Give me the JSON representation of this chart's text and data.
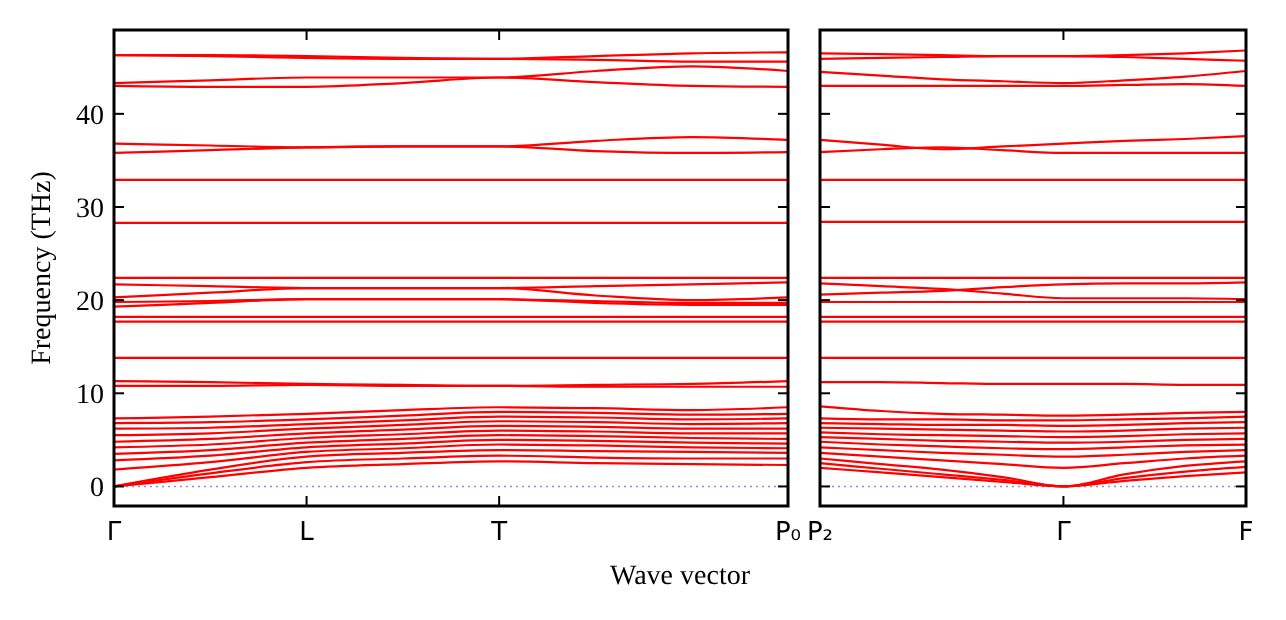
{
  "chart_data": [
    {
      "type": "line",
      "ylabel": "Frequency (THz)",
      "xlabel": "Wave vector",
      "categories": [
        "Γ",
        null,
        "L",
        null,
        "T",
        null,
        null,
        "P₀"
      ],
      "ylim": [
        -2.1,
        49
      ],
      "yticks": [
        0,
        10,
        20,
        30,
        40
      ],
      "ref_lines": [
        {
          "axis": "y",
          "value": 0,
          "color": "#8888ff",
          "line_style": "dotted"
        }
      ],
      "series": [
        {
          "color": "#ff0000",
          "values": [
            46.3,
            46.3,
            46.2,
            46.0,
            45.9,
            46.2,
            46.5,
            46.6
          ]
        },
        {
          "color": "#ff0000",
          "values": [
            46.3,
            46.2,
            46.0,
            45.9,
            45.9,
            45.8,
            45.6,
            45.6
          ]
        },
        {
          "color": "#ff0000",
          "values": [
            43.3,
            43.6,
            43.9,
            43.9,
            43.9,
            44.6,
            45.1,
            44.6
          ]
        },
        {
          "color": "#ff0000",
          "values": [
            43.0,
            42.9,
            42.9,
            43.3,
            43.9,
            43.4,
            43.0,
            42.9
          ]
        },
        {
          "color": "#ff0000",
          "values": [
            36.8,
            36.6,
            36.4,
            36.5,
            36.5,
            37.1,
            37.5,
            37.2
          ]
        },
        {
          "color": "#ff0000",
          "values": [
            35.8,
            36.1,
            36.4,
            36.5,
            36.5,
            36.0,
            35.8,
            35.9
          ]
        },
        {
          "color": "#ff0000",
          "values": [
            32.9,
            32.9,
            32.9,
            32.9,
            32.9,
            32.9,
            32.9,
            32.9
          ]
        },
        {
          "color": "#ff0000",
          "values": [
            28.3,
            28.3,
            28.3,
            28.3,
            28.3,
            28.3,
            28.3,
            28.3
          ]
        },
        {
          "color": "#ff0000",
          "values": [
            22.4,
            22.4,
            22.4,
            22.4,
            22.4,
            22.4,
            22.4,
            22.4
          ]
        },
        {
          "color": "#ff0000",
          "values": [
            21.7,
            21.5,
            21.3,
            21.3,
            21.3,
            21.5,
            21.7,
            21.9
          ]
        },
        {
          "color": "#ff0000",
          "values": [
            20.3,
            20.8,
            21.3,
            21.3,
            21.3,
            20.5,
            20.0,
            20.3
          ]
        },
        {
          "color": "#ff0000",
          "values": [
            19.8,
            19.9,
            20.1,
            20.1,
            20.1,
            19.9,
            19.7,
            19.7
          ]
        },
        {
          "color": "#ff0000",
          "values": [
            19.3,
            19.7,
            20.1,
            20.1,
            20.1,
            19.7,
            19.5,
            19.5
          ]
        },
        {
          "color": "#ff0000",
          "values": [
            18.2,
            18.2,
            18.2,
            18.2,
            18.2,
            18.2,
            18.2,
            18.2
          ]
        },
        {
          "color": "#ff0000",
          "values": [
            17.7,
            17.7,
            17.7,
            17.7,
            17.7,
            17.7,
            17.7,
            17.7
          ]
        },
        {
          "color": "#ff0000",
          "values": [
            13.8,
            13.8,
            13.8,
            13.8,
            13.8,
            13.8,
            13.8,
            13.8
          ]
        },
        {
          "color": "#ff0000",
          "values": [
            11.3,
            11.2,
            11.0,
            10.9,
            10.8,
            10.9,
            11.0,
            11.3
          ]
        },
        {
          "color": "#ff0000",
          "values": [
            10.8,
            10.8,
            10.9,
            10.8,
            10.8,
            10.7,
            10.7,
            10.7
          ]
        },
        {
          "color": "#ff0000",
          "values": [
            0,
            1.0,
            2.0,
            2.4,
            2.7,
            2.5,
            2.4,
            2.3
          ]
        },
        {
          "color": "#ff0000",
          "values": [
            0,
            1.4,
            2.6,
            3.0,
            3.3,
            3.1,
            3.0,
            3.0
          ]
        },
        {
          "color": "#ff0000",
          "values": [
            0,
            1.8,
            3.2,
            3.6,
            3.9,
            3.8,
            3.7,
            3.6
          ]
        },
        {
          "color": "#ff0000",
          "values": [
            1.8,
            2.6,
            3.7,
            4.1,
            4.5,
            4.4,
            4.2,
            4.1
          ]
        },
        {
          "color": "#ff0000",
          "values": [
            2.8,
            3.3,
            4.2,
            4.6,
            5.0,
            4.9,
            4.7,
            4.6
          ]
        },
        {
          "color": "#ff0000",
          "values": [
            3.5,
            3.9,
            4.7,
            5.1,
            5.5,
            5.4,
            5.2,
            5.1
          ]
        },
        {
          "color": "#ff0000",
          "values": [
            4.2,
            4.5,
            5.2,
            5.6,
            6.0,
            5.9,
            5.7,
            5.7
          ]
        },
        {
          "color": "#ff0000",
          "values": [
            4.8,
            5.1,
            5.7,
            6.1,
            6.5,
            6.4,
            6.2,
            6.2
          ]
        },
        {
          "color": "#ff0000",
          "values": [
            5.5,
            5.7,
            6.2,
            6.6,
            7.0,
            6.9,
            6.7,
            6.8
          ]
        },
        {
          "color": "#ff0000",
          "values": [
            6.2,
            6.3,
            6.7,
            7.1,
            7.5,
            7.4,
            7.2,
            7.3
          ]
        },
        {
          "color": "#ff0000",
          "values": [
            6.8,
            6.9,
            7.2,
            7.6,
            8.0,
            7.9,
            7.7,
            7.8
          ]
        },
        {
          "color": "#ff0000",
          "values": [
            7.3,
            7.5,
            7.8,
            8.2,
            8.5,
            8.4,
            8.2,
            8.5
          ]
        }
      ]
    },
    {
      "type": "line",
      "tick_labels": "x",
      "categories": [
        "P₂",
        null,
        null,
        null,
        "Γ",
        null,
        null,
        "F"
      ],
      "ylim": [
        -2.1,
        49
      ],
      "yticks": [
        0,
        10,
        20,
        30,
        40
      ],
      "ref_lines": [
        {
          "axis": "y",
          "value": 0,
          "color": "#8888ff",
          "line_style": "dotted"
        }
      ],
      "series": [
        {
          "color": "#ff0000",
          "values": [
            46.5,
            46.4,
            46.3,
            46.2,
            46.2,
            46.3,
            46.5,
            46.8
          ]
        },
        {
          "color": "#ff0000",
          "values": [
            45.9,
            46.0,
            46.1,
            46.2,
            46.2,
            46.1,
            45.9,
            45.7
          ]
        },
        {
          "color": "#ff0000",
          "values": [
            44.5,
            44.1,
            43.7,
            43.5,
            43.3,
            43.6,
            44.0,
            44.6
          ]
        },
        {
          "color": "#ff0000",
          "values": [
            43.0,
            43.0,
            43.0,
            43.0,
            43.0,
            43.1,
            43.2,
            43.0
          ]
        },
        {
          "color": "#ff0000",
          "values": [
            37.2,
            36.7,
            36.2,
            36.5,
            36.8,
            37.1,
            37.3,
            37.6
          ]
        },
        {
          "color": "#ff0000",
          "values": [
            35.9,
            36.2,
            36.4,
            36.1,
            35.8,
            35.8,
            35.8,
            35.8
          ]
        },
        {
          "color": "#ff0000",
          "values": [
            32.9,
            32.9,
            32.9,
            32.9,
            32.9,
            32.9,
            32.9,
            32.9
          ]
        },
        {
          "color": "#ff0000",
          "values": [
            28.4,
            28.4,
            28.4,
            28.4,
            28.4,
            28.4,
            28.4,
            28.4
          ]
        },
        {
          "color": "#ff0000",
          "values": [
            22.4,
            22.4,
            22.4,
            22.4,
            22.4,
            22.4,
            22.4,
            22.4
          ]
        },
        {
          "color": "#ff0000",
          "values": [
            21.8,
            21.5,
            21.2,
            20.7,
            20.2,
            20.2,
            20.2,
            20.1
          ]
        },
        {
          "color": "#ff0000",
          "values": [
            20.6,
            20.8,
            21.0,
            21.4,
            21.7,
            21.8,
            21.8,
            21.9
          ]
        },
        {
          "color": "#ff0000",
          "values": [
            19.8,
            19.8,
            19.8,
            19.8,
            19.8,
            19.8,
            19.8,
            19.8
          ]
        },
        {
          "color": "#ff0000",
          "values": [
            18.2,
            18.2,
            18.2,
            18.2,
            18.2,
            18.2,
            18.2,
            18.2
          ]
        },
        {
          "color": "#ff0000",
          "values": [
            17.7,
            17.7,
            17.7,
            17.7,
            17.7,
            17.7,
            17.7,
            17.7
          ]
        },
        {
          "color": "#ff0000",
          "values": [
            13.8,
            13.8,
            13.8,
            13.8,
            13.8,
            13.8,
            13.8,
            13.8
          ]
        },
        {
          "color": "#ff0000",
          "values": [
            11.2,
            11.2,
            11.1,
            11.0,
            11.0,
            11.0,
            10.9,
            10.9
          ]
        },
        {
          "color": "#ff0000",
          "values": [
            2.0,
            1.5,
            1.0,
            0.5,
            0,
            0.6,
            1.1,
            1.5
          ]
        },
        {
          "color": "#ff0000",
          "values": [
            2.5,
            1.9,
            1.3,
            0.7,
            0,
            0.9,
            1.6,
            2.1
          ]
        },
        {
          "color": "#ff0000",
          "values": [
            3.0,
            2.4,
            1.8,
            1.0,
            0,
            1.3,
            2.2,
            2.7
          ]
        },
        {
          "color": "#ff0000",
          "values": [
            3.6,
            3.2,
            2.8,
            2.4,
            2.0,
            2.5,
            3.0,
            3.3
          ]
        },
        {
          "color": "#ff0000",
          "values": [
            4.2,
            3.9,
            3.6,
            3.4,
            3.2,
            3.4,
            3.7,
            3.9
          ]
        },
        {
          "color": "#ff0000",
          "values": [
            4.8,
            4.5,
            4.3,
            4.1,
            4.0,
            4.2,
            4.4,
            4.5
          ]
        },
        {
          "color": "#ff0000",
          "values": [
            5.3,
            5.1,
            4.9,
            4.8,
            4.7,
            4.8,
            5.0,
            5.1
          ]
        },
        {
          "color": "#ff0000",
          "values": [
            5.8,
            5.6,
            5.5,
            5.4,
            5.3,
            5.4,
            5.6,
            5.7
          ]
        },
        {
          "color": "#ff0000",
          "values": [
            6.3,
            6.2,
            6.1,
            6.0,
            5.9,
            6.0,
            6.2,
            6.3
          ]
        },
        {
          "color": "#ff0000",
          "values": [
            6.8,
            6.7,
            6.6,
            6.6,
            6.5,
            6.6,
            6.8,
            6.9
          ]
        },
        {
          "color": "#ff0000",
          "values": [
            7.3,
            7.2,
            7.2,
            7.1,
            7.1,
            7.2,
            7.3,
            7.5
          ]
        },
        {
          "color": "#ff0000",
          "values": [
            8.6,
            8.1,
            7.8,
            7.7,
            7.6,
            7.7,
            7.9,
            8.0
          ]
        }
      ]
    }
  ]
}
